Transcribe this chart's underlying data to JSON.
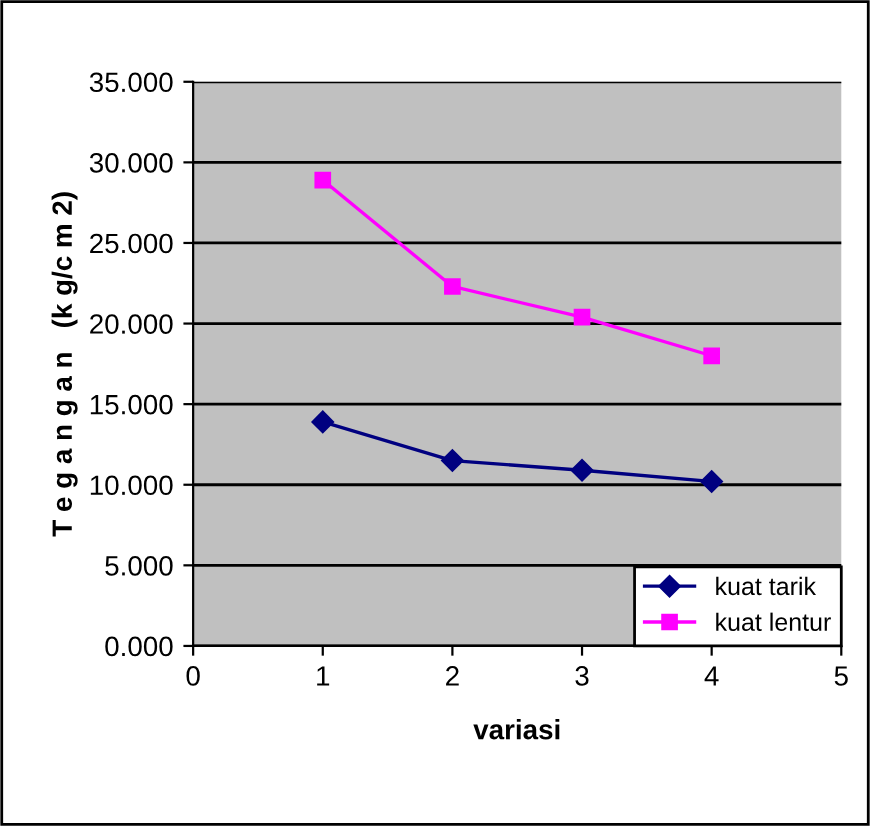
{
  "chart_data": {
    "type": "line",
    "xlabel": "variasi",
    "ylabel": "T e g a n g a n   (k g/c m 2)",
    "x": [
      1,
      2,
      3,
      4
    ],
    "series": [
      {
        "name": "kuat tarik",
        "color": "#000080",
        "marker": "diamond",
        "values": [
          13.9,
          11.5,
          10.9,
          10.2
        ]
      },
      {
        "name": "kuat lentur",
        "color": "#ff00ff",
        "marker": "square",
        "values": [
          28.9,
          22.3,
          20.4,
          18.0
        ]
      }
    ],
    "xlim": [
      0,
      5
    ],
    "xticks": [
      0,
      1,
      2,
      3,
      4,
      5
    ],
    "ylim": [
      0,
      35
    ],
    "yticks": [
      {
        "value": 0,
        "label": "0.000"
      },
      {
        "value": 5,
        "label": "5.000"
      },
      {
        "value": 10,
        "label": "10.000"
      },
      {
        "value": 15,
        "label": "15.000"
      },
      {
        "value": 20,
        "label": "20.000"
      },
      {
        "value": 25,
        "label": "25.000"
      },
      {
        "value": 30,
        "label": "30.000"
      },
      {
        "value": 35,
        "label": "35.000"
      }
    ],
    "grid": "y",
    "legend": "bottom right"
  }
}
